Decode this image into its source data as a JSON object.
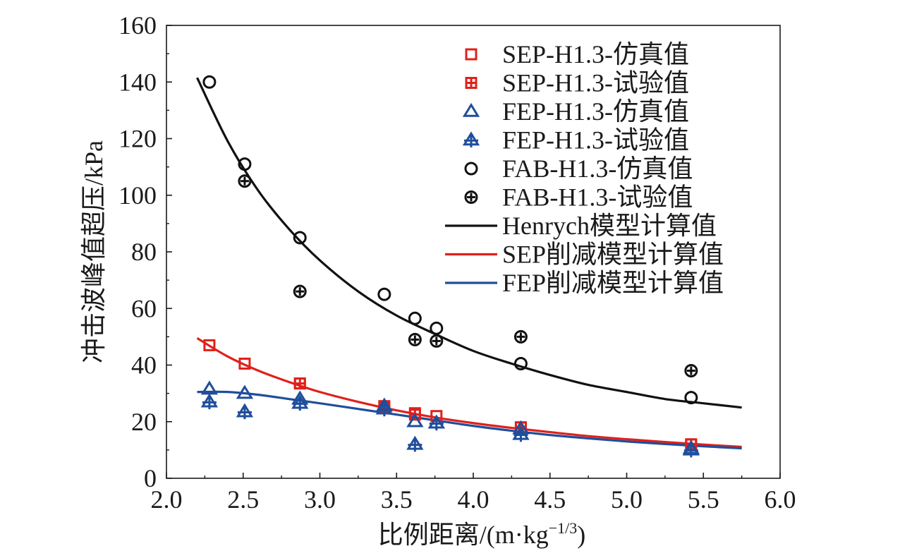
{
  "chart_data": {
    "type": "scatter",
    "xlabel": "比例距离/(m·kg",
    "xlabel_sup": "−1/3",
    "xlabel_close": ")",
    "ylabel": "冲击波峰值超压/kPa",
    "xlim": [
      2.0,
      6.0
    ],
    "ylim": [
      0,
      160
    ],
    "xticks": [
      "2.0",
      "2.5",
      "3.0",
      "3.5",
      "4.0",
      "4.5",
      "5.0",
      "5.5",
      "6.0"
    ],
    "yticks": [
      "0",
      "20",
      "40",
      "60",
      "80",
      "100",
      "120",
      "140",
      "160"
    ],
    "grid": false,
    "legend_position": "top-right",
    "colors": {
      "red": "#e0201b",
      "blue": "#1f4e9c",
      "black": "#111111"
    },
    "series": [
      {
        "name": "SEP-H1.3-仿真值",
        "marker": "square-open",
        "color": "#e0201b",
        "x": [
          2.28,
          2.51,
          2.87,
          3.42,
          3.62,
          3.76,
          4.31,
          5.42
        ],
        "y": [
          47,
          40.5,
          33.5,
          25.5,
          23,
          22,
          18,
          12
        ]
      },
      {
        "name": "SEP-H1.3-试验值",
        "marker": "square-plus",
        "color": "#e0201b",
        "x": [
          2.87,
          3.42,
          3.62,
          4.31,
          5.42
        ],
        "y": [
          33.5,
          25,
          22.5,
          18,
          12
        ]
      },
      {
        "name": "FEP-H1.3-仿真值",
        "marker": "triangle-open",
        "color": "#1f4e9c",
        "x": [
          2.28,
          2.51,
          2.87,
          3.42,
          3.62,
          3.76,
          4.31,
          5.42
        ],
        "y": [
          31.5,
          30,
          28,
          25.5,
          20,
          19.5,
          17.5,
          10.5
        ]
      },
      {
        "name": "FEP-H1.3-试验值",
        "marker": "triangle-plus",
        "color": "#1f4e9c",
        "x": [
          2.28,
          2.51,
          2.87,
          3.42,
          3.62,
          3.76,
          4.31,
          5.42
        ],
        "y": [
          27,
          23.5,
          26.5,
          24.5,
          12,
          19.5,
          15.5,
          10
        ]
      },
      {
        "name": "FAB-H1.3-仿真值",
        "marker": "circle-open",
        "color": "#111111",
        "x": [
          2.28,
          2.51,
          2.87,
          3.42,
          3.62,
          3.76,
          4.31,
          5.42
        ],
        "y": [
          140,
          111,
          85,
          65,
          56.5,
          53,
          40.5,
          28.5
        ]
      },
      {
        "name": "FAB-H1.3-试验值",
        "marker": "circle-plus",
        "color": "#111111",
        "x": [
          2.51,
          2.87,
          3.62,
          3.76,
          4.31,
          5.42
        ],
        "y": [
          105,
          66,
          49,
          48.5,
          50,
          38
        ]
      },
      {
        "name": "Henrych模型计算值",
        "marker": "line",
        "color": "#111111",
        "x": [
          2.2,
          2.4,
          2.6,
          2.8,
          3.0,
          3.25,
          3.5,
          3.75,
          4.0,
          4.25,
          4.5,
          4.75,
          5.0,
          5.25,
          5.5,
          5.75
        ],
        "y": [
          141.5,
          119,
          101.5,
          88,
          77,
          66,
          57.5,
          51,
          45,
          40.5,
          36.5,
          33,
          30.5,
          28,
          26.5,
          25
        ]
      },
      {
        "name": "SEP削减模型计算值",
        "marker": "line",
        "color": "#e0201b",
        "x": [
          2.2,
          2.4,
          2.6,
          2.8,
          3.0,
          3.25,
          3.5,
          3.75,
          4.0,
          4.25,
          4.5,
          4.75,
          5.0,
          5.25,
          5.5,
          5.75
        ],
        "y": [
          49.5,
          43,
          38,
          34,
          30.5,
          27,
          24,
          21.5,
          19.5,
          17.8,
          16.3,
          14.9,
          13.8,
          12.8,
          11.9,
          11.1
        ]
      },
      {
        "name": "FEP削减模型计算值",
        "marker": "line",
        "color": "#1f4e9c",
        "x": [
          2.2,
          2.4,
          2.6,
          2.8,
          3.0,
          3.25,
          3.5,
          3.75,
          4.0,
          4.25,
          4.5,
          4.75,
          5.0,
          5.25,
          5.5,
          5.75
        ],
        "y": [
          30.5,
          30.5,
          29.5,
          28,
          26.5,
          24.5,
          22.5,
          20.5,
          18.5,
          16.8,
          15.3,
          14.1,
          13,
          12.1,
          11.3,
          10.6
        ]
      }
    ]
  }
}
